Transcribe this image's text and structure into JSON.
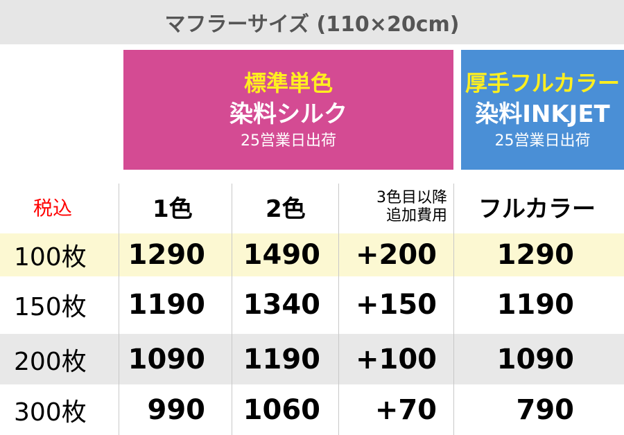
{
  "title": "マフラーサイズ (110×20cm)",
  "plans": [
    {
      "line1": "標準単色",
      "line2": "染料シルク",
      "line3": "25営業日出荷",
      "color": "#d44b93"
    },
    {
      "line1": "厚手フルカラー",
      "line2": "染料INKJET",
      "line3": "25営業日出荷",
      "color": "#4a8fd6"
    }
  ],
  "header": {
    "tax": "税込",
    "columns": [
      "1色",
      "2色",
      "3色目以降",
      "追加費用",
      "フルカラー"
    ]
  },
  "rows": [
    {
      "qty": "100枚",
      "c1": "1290",
      "c2": "1490",
      "extra": "+200",
      "full": "1290"
    },
    {
      "qty": "150枚",
      "c1": "1190",
      "c2": "1340",
      "extra": "+150",
      "full": "1190"
    },
    {
      "qty": "200枚",
      "c1": "1090",
      "c2": "1190",
      "extra": "+100",
      "full": "1090"
    },
    {
      "qty": "300枚",
      "c1": "990",
      "c2": "1060",
      "extra": "+70",
      "full": "790"
    }
  ],
  "colors": {
    "highlight_row": "#fcf8d2",
    "alt_row": "#e8e8e8",
    "tax_label": "#ff0000"
  }
}
